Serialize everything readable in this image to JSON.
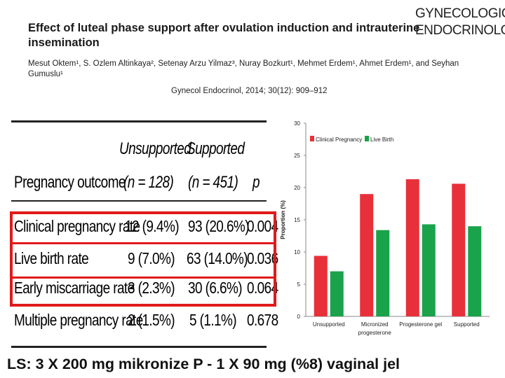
{
  "paper": {
    "title": "Effect of luteal phase support after ovulation induction and intrauterine insemination",
    "authors": "Mesut Oktem¹, S. Ozlem Altinkaya², Setenay Arzu Yilmaz³, Nuray Bozkurt¹, Mehmet Erdem¹, Ahmet Erdem¹, and Seyhan Gumuslu¹",
    "citation": "Gynecol Endocrinol, 2014; 30(12): 909–912",
    "journal_line1": "GYNECOLOGICAL",
    "journal_line2": "ENDOCRINOLOGY"
  },
  "table": {
    "col_unsupported": "Unsupported",
    "col_supported": "Supported",
    "col_label": "Pregnancy outcome",
    "n_unsupported": "(n = 128)",
    "n_supported": "(n = 451)",
    "col_p": "p",
    "rows": [
      {
        "outcome": "Clinical pregnancy rate",
        "unsupported": "12 (9.4%)",
        "supported": "93 (20.6%)",
        "p": "0.004"
      },
      {
        "outcome": "Live birth rate",
        "unsupported": "9 (7.0%)",
        "supported": "63 (14.0%)",
        "p": "0.036"
      },
      {
        "outcome": "Early miscarriage rate",
        "unsupported": "3 (2.3%)",
        "supported": "30 (6.6%)",
        "p": "0.064"
      },
      {
        "outcome": "Multiple pregnancy rate",
        "unsupported": "2 (1.5%)",
        "supported": "5 (1.1%)",
        "p": "0.678"
      }
    ]
  },
  "chart_data": {
    "type": "bar",
    "title": "",
    "xlabel": "",
    "ylabel": "Proportion (%)",
    "ylim": [
      0,
      30
    ],
    "yticks": [
      "0",
      "5",
      "10",
      "15",
      "20",
      "25",
      "30"
    ],
    "categories": [
      "Unsupported",
      "Micronized progesterone",
      "Progesterone gel",
      "Supported"
    ],
    "category_lines": [
      [
        "Unsupported"
      ],
      [
        "Micronized",
        "progesterone"
      ],
      [
        "Progesterone gel"
      ],
      [
        "Supported"
      ]
    ],
    "series": [
      {
        "name": "Clinical Pregnancy",
        "color": "#e8303a",
        "values": [
          9.4,
          19.0,
          21.3,
          20.6
        ]
      },
      {
        "name": "Live Birth",
        "color": "#1aa34a",
        "values": [
          7.0,
          13.4,
          14.3,
          14.0
        ]
      }
    ],
    "legend": "top-left"
  },
  "footer": {
    "text": "LS: 3 X 200 mg mikronize P -  1 X 90 mg (%8) vaginal jel"
  },
  "colors": {
    "highlight": "#e01a1a",
    "clinical": "#e8303a",
    "live": "#1aa34a"
  }
}
